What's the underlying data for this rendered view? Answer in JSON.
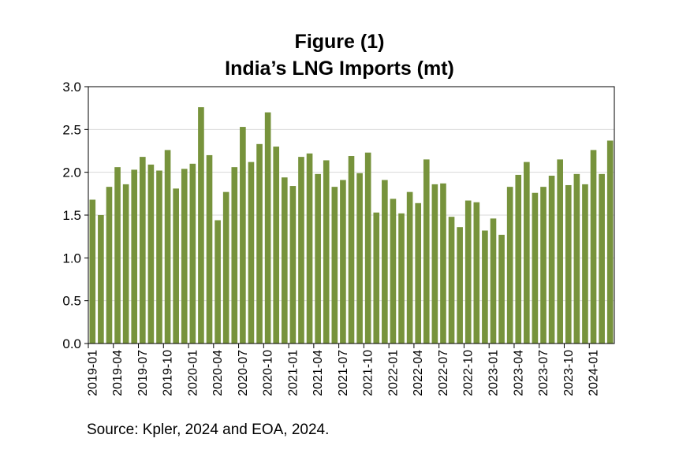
{
  "chart_data": {
    "type": "bar",
    "title": "Figure (1)",
    "subtitle": "India’s LNG Imports (mt)",
    "xlabel": "",
    "ylabel": "",
    "ylim": [
      0,
      3.0
    ],
    "yticks": [
      "0.0",
      "0.5",
      "1.0",
      "1.5",
      "2.0",
      "2.5",
      "3.0"
    ],
    "grid": true,
    "bar_color": "#77933c",
    "categories": [
      "2019-01",
      "2019-02",
      "2019-03",
      "2019-04",
      "2019-05",
      "2019-06",
      "2019-07",
      "2019-08",
      "2019-09",
      "2019-10",
      "2019-11",
      "2019-12",
      "2020-01",
      "2020-02",
      "2020-03",
      "2020-04",
      "2020-05",
      "2020-06",
      "2020-07",
      "2020-08",
      "2020-09",
      "2020-10",
      "2020-11",
      "2020-12",
      "2021-01",
      "2021-02",
      "2021-03",
      "2021-04",
      "2021-05",
      "2021-06",
      "2021-07",
      "2021-08",
      "2021-09",
      "2021-10",
      "2021-11",
      "2021-12",
      "2022-01",
      "2022-02",
      "2022-03",
      "2022-04",
      "2022-05",
      "2022-06",
      "2022-07",
      "2022-08",
      "2022-09",
      "2022-10",
      "2022-11",
      "2022-12",
      "2023-01",
      "2023-02",
      "2023-03",
      "2023-04",
      "2023-05",
      "2023-06",
      "2023-07",
      "2023-08",
      "2023-09",
      "2023-10",
      "2023-11",
      "2023-12",
      "2024-01",
      "2024-02",
      "2024-03"
    ],
    "values": [
      1.68,
      1.5,
      1.83,
      2.06,
      1.86,
      2.03,
      2.18,
      2.09,
      2.02,
      2.26,
      1.81,
      2.04,
      2.1,
      2.76,
      2.2,
      1.44,
      1.77,
      2.06,
      2.53,
      2.12,
      2.33,
      2.7,
      2.3,
      1.94,
      1.84,
      2.18,
      2.22,
      1.98,
      2.14,
      1.83,
      1.91,
      2.19,
      1.99,
      2.23,
      1.53,
      1.91,
      1.69,
      1.52,
      1.77,
      1.64,
      2.15,
      1.86,
      1.87,
      1.48,
      1.36,
      1.67,
      1.65,
      1.32,
      1.46,
      1.27,
      1.83,
      1.97,
      2.12,
      1.76,
      1.83,
      1.96,
      2.15,
      1.85,
      1.98,
      1.86,
      2.26,
      1.98,
      2.37
    ],
    "xtick_labels": [
      "2019-01",
      "2019-04",
      "2019-07",
      "2019-10",
      "2020-01",
      "2020-04",
      "2020-07",
      "2020-10",
      "2021-01",
      "2021-04",
      "2021-07",
      "2021-10",
      "2022-01",
      "2022-04",
      "2022-07",
      "2022-10",
      "2023-01",
      "2023-04",
      "2023-07",
      "2023-10",
      "2024-01"
    ]
  },
  "source": "Source: Kpler, 2024 and EOA, 2024."
}
